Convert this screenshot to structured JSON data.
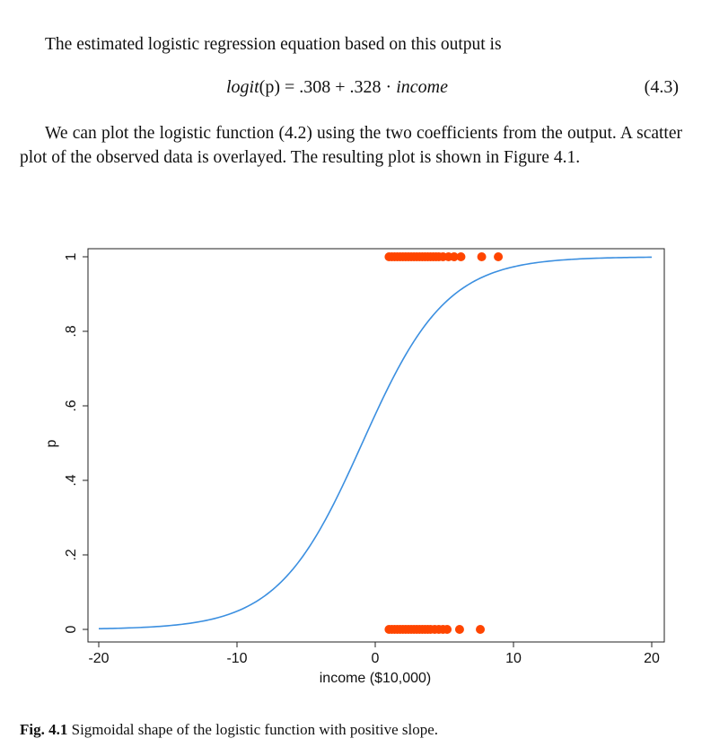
{
  "text": {
    "para1": "The estimated logistic regression equation based on this output is",
    "equation": {
      "lhs": "logit",
      "arg": "(p)",
      "rhs_prefix": " = .308 + .328 · ",
      "var": "income",
      "number": "(4.3)"
    },
    "para2": "We can plot the logistic function (4.2) using the two coefficients from the output. A scatter plot of the observed data is overlayed. The resulting plot is shown in Figure 4.1.",
    "caption_label": "Fig. 4.1",
    "caption_text": " Sigmoidal shape of the logistic function with positive slope."
  },
  "colors": {
    "curve": "#3b8fe0",
    "points": "#ff4500",
    "axis": "#222222"
  },
  "chart_data": {
    "type": "scatter",
    "title": "",
    "xlabel": "income ($10,000)",
    "ylabel": "p",
    "xlim": [
      -20,
      20
    ],
    "ylim": [
      0,
      1
    ],
    "x_ticks": [
      -20,
      -10,
      0,
      10,
      20
    ],
    "x_tick_labels": [
      "-20",
      "-10",
      "0",
      "10",
      "20"
    ],
    "y_ticks": [
      0,
      0.2,
      0.4,
      0.6,
      0.8,
      1
    ],
    "y_tick_labels": [
      "0",
      ".2",
      ".4",
      ".6",
      ".8",
      "1"
    ],
    "grid": false,
    "curve": {
      "name": "logistic function",
      "intercept": 0.308,
      "slope": 0.328,
      "x_range": [
        -20,
        20
      ]
    },
    "series": [
      {
        "y": 1,
        "x": [
          1,
          1.2,
          1.4,
          1.6,
          1.8,
          2,
          2.2,
          2.4,
          2.6,
          2.8,
          3,
          3.2,
          3.4,
          3.6,
          3.8,
          4,
          4.2,
          4.4,
          4.6,
          4.9,
          5.3,
          5.7,
          6.2,
          7.7,
          8.9
        ]
      },
      {
        "y": 0,
        "x": [
          1,
          1.2,
          1.4,
          1.6,
          1.8,
          2,
          2.2,
          2.4,
          2.6,
          2.8,
          3,
          3.2,
          3.4,
          3.6,
          3.8,
          4,
          4.3,
          4.6,
          4.9,
          5.2,
          6.1,
          7.6
        ]
      }
    ]
  }
}
